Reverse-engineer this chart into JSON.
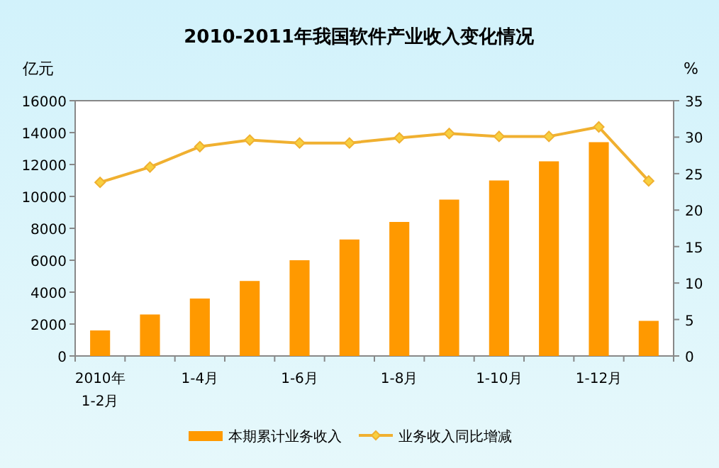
{
  "chart_data": {
    "type": "bar",
    "title": "2010-2011年我国软件产业收入变化情况",
    "ylabel": "亿元",
    "y2label": "%",
    "categories": [
      "2010年 1-2月",
      null,
      "1-4月",
      null,
      "1-6月",
      null,
      "1-8月",
      null,
      "1-10月",
      null,
      "1-12月",
      null
    ],
    "series": [
      {
        "name": "本期累计业务收入",
        "color": "#ff9900",
        "values": [
          1600,
          2600,
          3600,
          4700,
          6000,
          7300,
          8400,
          9800,
          11000,
          12200,
          13400,
          2200
        ]
      },
      {
        "name": "业务收入同比增减",
        "type": "line",
        "axis": "y2",
        "color": "#f0b030",
        "values": [
          23.8,
          25.9,
          28.7,
          29.6,
          29.2,
          29.2,
          29.9,
          30.5,
          30.1,
          30.1,
          31.4,
          24.0
        ]
      }
    ],
    "ylim": [
      0,
      16000
    ],
    "yticks": [
      0,
      2000,
      4000,
      6000,
      8000,
      10000,
      12000,
      14000,
      16000
    ],
    "y2lim": [
      0,
      35
    ],
    "y2ticks": [
      0,
      5,
      10,
      15,
      20,
      25,
      30,
      35
    ],
    "legend": "bottom",
    "marker": "diamond"
  }
}
